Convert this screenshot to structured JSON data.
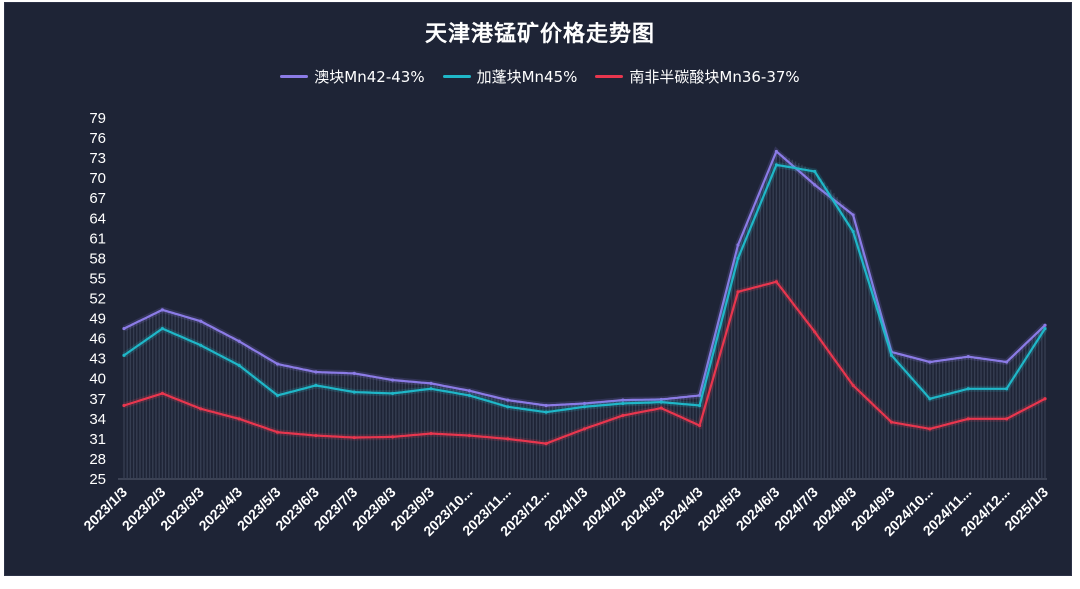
{
  "chart_data": {
    "type": "line",
    "title": "天津港锰矿价格走势图",
    "y_ticks": [
      25,
      28,
      31,
      34,
      37,
      40,
      43,
      46,
      49,
      52,
      55,
      58,
      61,
      64,
      67,
      70,
      73,
      76,
      79
    ],
    "ylim": [
      25,
      79
    ],
    "categories": [
      "2023/1/3",
      "2023/2/3",
      "2023/3/3",
      "2023/4/3",
      "2023/5/3",
      "2023/6/3",
      "2023/7/3",
      "2023/8/3",
      "2023/9/3",
      "2023/10...",
      "2023/11...",
      "2023/12...",
      "2024/1/3",
      "2024/2/3",
      "2024/3/3",
      "2024/4/3",
      "2024/5/3",
      "2024/6/3",
      "2024/7/3",
      "2024/8/3",
      "2024/9/3",
      "2024/10...",
      "2024/11...",
      "2024/12...",
      "2025/1/3"
    ],
    "legend_position": "top-center",
    "grid": false,
    "series": [
      {
        "name": "澳块Mn42-43%",
        "color": "#8b7be6",
        "values": [
          47.5,
          50.3,
          48.6,
          45.6,
          42.2,
          41.0,
          40.8,
          39.8,
          39.3,
          38.2,
          36.8,
          36.0,
          36.3,
          36.8,
          36.9,
          37.5,
          60.0,
          74.0,
          69.0,
          64.5,
          44.0,
          42.5,
          43.3,
          42.5,
          48.0
        ]
      },
      {
        "name": "加蓬块Mn45%",
        "color": "#1fb7c8",
        "values": [
          43.5,
          47.5,
          45.0,
          42.0,
          37.5,
          39.0,
          38.0,
          37.8,
          38.5,
          37.5,
          35.8,
          35.0,
          35.8,
          36.3,
          36.5,
          36.0,
          58.0,
          72.0,
          71.0,
          62.0,
          43.5,
          37.0,
          38.5,
          38.5,
          47.5
        ]
      },
      {
        "name": "南非半碳酸块Mn36-37%",
        "color": "#e8364e",
        "values": [
          36.0,
          37.8,
          35.5,
          34.0,
          32.0,
          31.5,
          31.2,
          31.3,
          31.8,
          31.5,
          31.0,
          30.3,
          32.5,
          34.5,
          35.6,
          33.0,
          53.0,
          54.5,
          47.0,
          39.0,
          33.5,
          32.5,
          34.0,
          34.0,
          37.0
        ]
      }
    ]
  }
}
